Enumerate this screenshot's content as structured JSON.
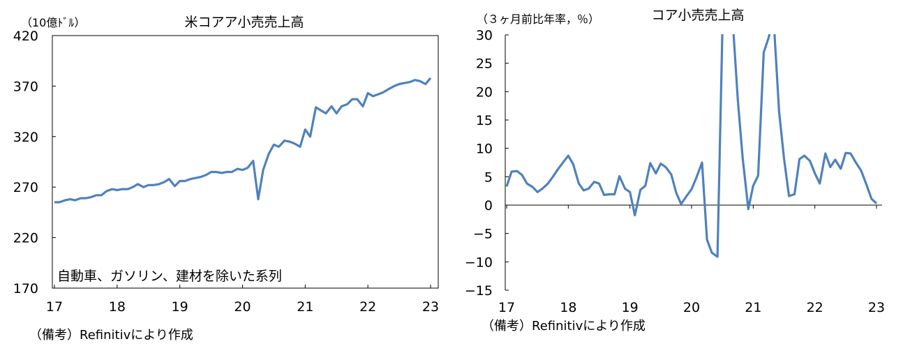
{
  "chart_data": [
    {
      "type": "line",
      "title": "米コアア小売売上高",
      "unit_label": "（10億ﾄﾞﾙ）",
      "annotation": "自動車、ガソリン、建材を除いた系列",
      "note": "（備考）Refinitivにより作成",
      "xlim": [
        17,
        23
      ],
      "ylim": [
        170,
        420
      ],
      "x_ticks": [
        "17",
        "18",
        "19",
        "20",
        "21",
        "22",
        "23"
      ],
      "y_ticks": [
        "420",
        "370",
        "320",
        "270",
        "220",
        "170"
      ],
      "grid": false,
      "line_color": "#4f81bd",
      "series": [
        {
          "x": [
            17.0,
            17.08,
            17.17,
            17.25,
            17.33,
            17.42,
            17.5,
            17.58,
            17.67,
            17.75,
            17.83,
            17.92,
            18.0,
            18.08,
            18.17,
            18.25,
            18.33,
            18.42,
            18.5,
            18.58,
            18.67,
            18.75,
            18.83,
            18.92,
            19.0,
            19.08,
            19.17,
            19.25,
            19.33,
            19.42,
            19.5,
            19.58,
            19.67,
            19.75,
            19.83,
            19.92,
            20.0,
            20.08,
            20.17,
            20.25,
            20.33,
            20.42,
            20.5,
            20.58,
            20.67,
            20.75,
            20.83,
            20.92,
            21.0,
            21.08,
            21.17,
            21.25,
            21.33,
            21.42,
            21.5,
            21.58,
            21.67,
            21.75,
            21.83,
            21.92,
            22.0,
            22.08,
            22.17,
            22.25,
            22.33,
            22.42,
            22.5,
            22.58,
            22.67,
            22.75,
            22.83,
            22.92,
            23.0
          ],
          "y": [
            255,
            255,
            257,
            258,
            257,
            259,
            259,
            260,
            262,
            262,
            266,
            268,
            267,
            268,
            268,
            270,
            273,
            270,
            272,
            272,
            273,
            275,
            278,
            271,
            276,
            276,
            278,
            279,
            280,
            282,
            285,
            285,
            284,
            285,
            285,
            288,
            287,
            289,
            296,
            258,
            287,
            303,
            312,
            310,
            316,
            315,
            313,
            310,
            327,
            320,
            349,
            346,
            343,
            350,
            343,
            350,
            352,
            357,
            357,
            350,
            363,
            360,
            362,
            364,
            367,
            370,
            372,
            373,
            374,
            376,
            375,
            372,
            378
          ]
        }
      ]
    },
    {
      "type": "line",
      "title": "コア小売売上高",
      "unit_label": "（３ヶ月前比年率，％）",
      "note": "（備考）Refinitivにより作成",
      "xlim": [
        17,
        23
      ],
      "ylim": [
        -15,
        30
      ],
      "x_ticks": [
        "17",
        "18",
        "19",
        "20",
        "21",
        "22",
        "23"
      ],
      "y_ticks": [
        "30",
        "25",
        "20",
        "15",
        "10",
        "5",
        "0",
        "−5",
        "−10",
        "−15"
      ],
      "grid": false,
      "zero_line": true,
      "line_color": "#4f81bd",
      "series": [
        {
          "x": [
            17.0,
            17.08,
            17.17,
            17.25,
            17.33,
            17.42,
            17.5,
            17.58,
            17.67,
            17.75,
            17.83,
            17.92,
            18.0,
            18.08,
            18.17,
            18.25,
            18.33,
            18.42,
            18.5,
            18.58,
            18.67,
            18.75,
            18.83,
            18.92,
            19.0,
            19.08,
            19.17,
            19.25,
            19.33,
            19.42,
            19.5,
            19.58,
            19.67,
            19.75,
            19.83,
            19.92,
            20.0,
            20.08,
            20.17,
            20.25,
            20.33,
            20.42,
            20.5,
            20.58,
            20.67,
            20.75,
            20.83,
            20.92,
            21.0,
            21.08,
            21.17,
            21.25,
            21.33,
            21.42,
            21.5,
            21.58,
            21.67,
            21.75,
            21.83,
            21.92,
            22.0,
            22.08,
            22.17,
            22.25,
            22.33,
            22.42,
            22.5,
            22.58,
            22.67,
            22.75,
            22.83,
            22.92,
            23.0
          ],
          "y": [
            3.3,
            5.9,
            6.0,
            5.3,
            3.8,
            3.2,
            2.3,
            2.9,
            3.8,
            5.0,
            6.3,
            7.6,
            8.7,
            7.2,
            3.8,
            2.6,
            2.9,
            4.1,
            3.8,
            1.8,
            1.9,
            1.9,
            5.1,
            2.9,
            2.3,
            -1.8,
            2.7,
            3.4,
            7.4,
            5.6,
            7.3,
            6.7,
            5.4,
            2.2,
            0.2,
            1.6,
            2.8,
            4.9,
            7.5,
            -6.1,
            -8.4,
            -9.1,
            31.0,
            35.0,
            32.0,
            18.5,
            8.2,
            -0.7,
            3.4,
            5.2,
            26.9,
            29.5,
            33.0,
            16.5,
            8.2,
            1.6,
            1.9,
            8.1,
            8.7,
            7.8,
            5.6,
            3.8,
            9.1,
            6.7,
            8.0,
            6.4,
            9.2,
            9.1,
            7.4,
            6.1,
            3.8,
            1.1,
            0.3
          ]
        }
      ]
    }
  ]
}
